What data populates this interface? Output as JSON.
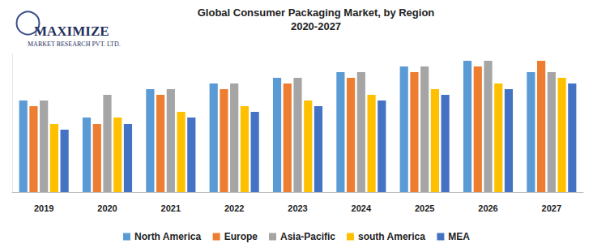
{
  "chart_data": {
    "type": "bar",
    "title": "Global Consumer Packaging Market, by Region",
    "subtitle": "2020-2027",
    "annotations": [
      "MAXIMIZE",
      "MARKET RESEARCH PVT. LTD."
    ],
    "categories": [
      "2019",
      "2020",
      "2021",
      "2022",
      "2023",
      "2024",
      "2025",
      "2026",
      "2027"
    ],
    "series": [
      {
        "name": "North America",
        "color": "#5B9BD5",
        "values": [
          113,
          92,
          127,
          134,
          141,
          148,
          155,
          162,
          148
        ]
      },
      {
        "name": "Europe",
        "color": "#ED7D31",
        "values": [
          106,
          84,
          120,
          127,
          134,
          141,
          148,
          155,
          162
        ]
      },
      {
        "name": "Asia-Pacific",
        "color": "#A5A5A5",
        "values": [
          113,
          120,
          127,
          134,
          141,
          148,
          155,
          162,
          148
        ]
      },
      {
        "name": "south America",
        "color": "#FFC000",
        "values": [
          84,
          92,
          99,
          106,
          113,
          120,
          127,
          134,
          141
        ]
      },
      {
        "name": "MEA",
        "color": "#4472C4",
        "values": [
          77,
          84,
          92,
          99,
          106,
          113,
          120,
          127,
          134
        ]
      }
    ],
    "ylim": [
      0,
      170
    ],
    "grid": false,
    "legend": "bottom",
    "tick_labels": "x"
  }
}
